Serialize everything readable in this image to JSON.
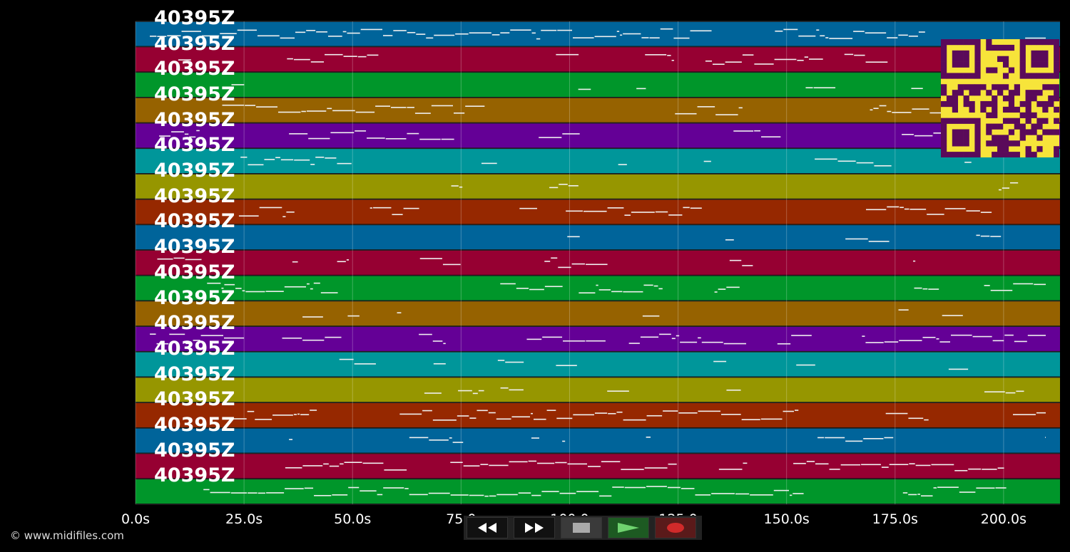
{
  "track_label": "40395Z",
  "track_count": 19,
  "track_colors": [
    "#00649a",
    "#960032",
    "#00962a",
    "#966200",
    "#640096",
    "#00969a",
    "#969600",
    "#962800"
  ],
  "time_axis": {
    "ticks": [
      "0.0s",
      "25.0s",
      "50.0s",
      "75.0",
      "100.0",
      "125.0",
      "150.0s",
      "175.0s",
      "200.0s"
    ],
    "tick_values": [
      0,
      25,
      50,
      75,
      100,
      125,
      150,
      175,
      200
    ],
    "max_seconds": 213
  },
  "copyright": "© www.midifiles.com",
  "controls": {
    "rewind": "rewind-icon",
    "fast_forward": "fast-forward-icon",
    "stop": "stop-icon",
    "play": "play-icon",
    "record": "record-icon"
  },
  "qr_code": "qr-code-icon"
}
